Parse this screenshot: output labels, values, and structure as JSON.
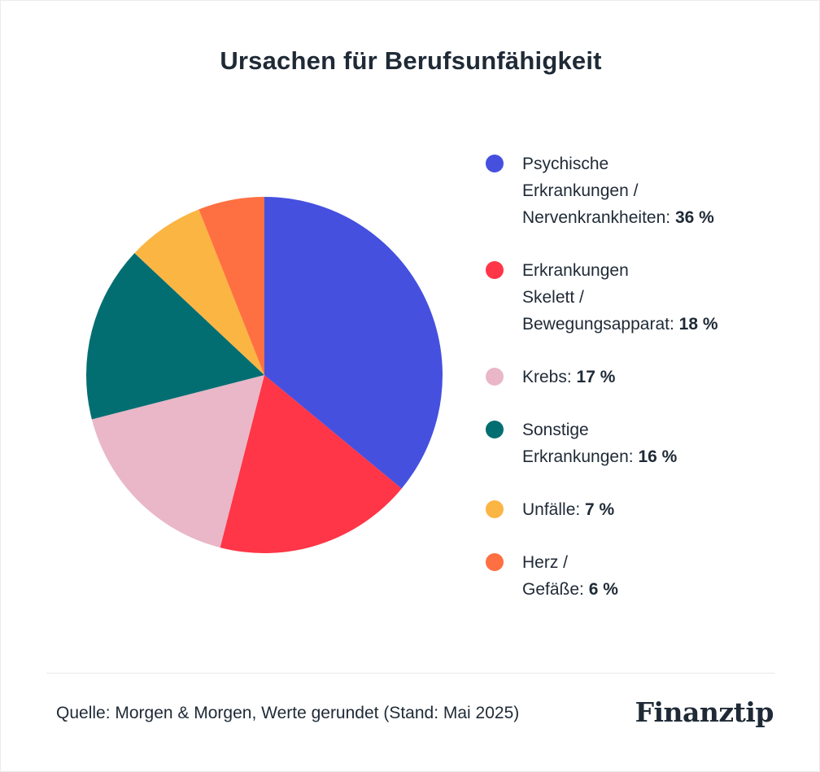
{
  "chart_data": {
    "type": "pie",
    "title": "Ursachen für Berufsunfähigkeit",
    "slices": [
      {
        "label": "Psychische Erkrankungen / Nervenkrankheiten",
        "label_lines": [
          "Psychische",
          "Erkrankungen /",
          "Nervenkrankheiten:"
        ],
        "value_text": "36 %",
        "value": 36,
        "color": "#4550df"
      },
      {
        "label": "Erkrankungen Skelett / Bewegungsapparat",
        "label_lines": [
          "Erkrankungen",
          "Skelett /",
          "Bewegungsapparat:"
        ],
        "value_text": "18 %",
        "value": 18,
        "color": "#fe3647"
      },
      {
        "label": "Krebs",
        "label_lines": [
          "Krebs:"
        ],
        "value_text": "17 %",
        "value": 17,
        "color": "#e9b7c7"
      },
      {
        "label": "Sonstige Erkrankungen",
        "label_lines": [
          "Sonstige",
          "Erkrankungen:"
        ],
        "value_text": "16 %",
        "value": 16,
        "color": "#036e72"
      },
      {
        "label": "Unfälle",
        "label_lines": [
          "Unfälle:"
        ],
        "value_text": "7 %",
        "value": 7,
        "color": "#fbb543"
      },
      {
        "label": "Herz / Gefäße",
        "label_lines": [
          "Herz /",
          "Gefäße:"
        ],
        "value_text": "6 %",
        "value": 6,
        "color": "#fe7042"
      }
    ],
    "legend_position": "right",
    "start_angle": "12 o'clock",
    "direction": "clockwise"
  },
  "footer": {
    "source": "Quelle: Morgen & Morgen, Werte gerundet (Stand: Mai 2025)",
    "logo": "Finanztip"
  }
}
